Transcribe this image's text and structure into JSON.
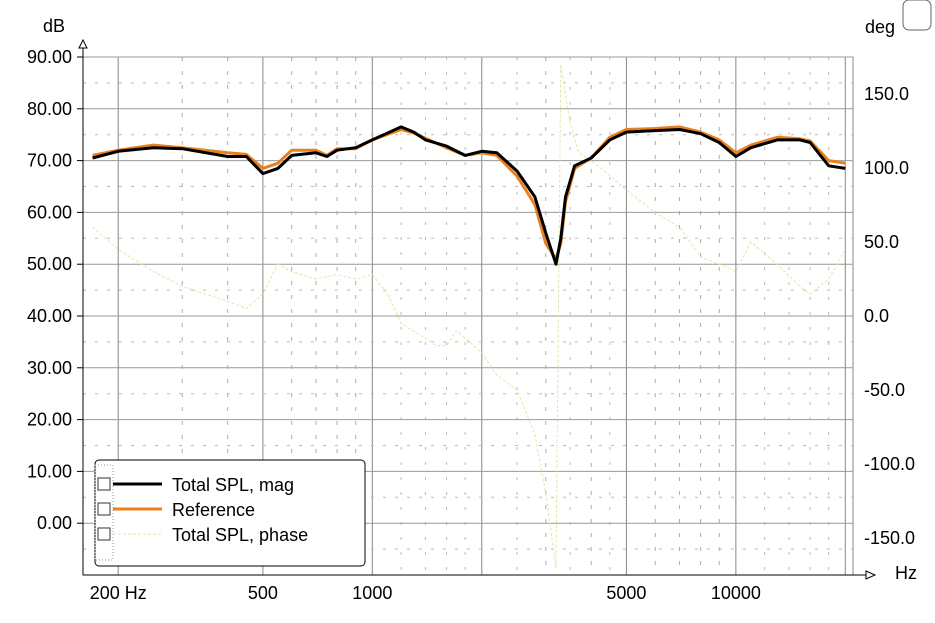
{
  "chart_data": {
    "type": "line",
    "xlabel": "Hz",
    "ylabel": "dB",
    "y2label": "deg",
    "x_scale": "log",
    "xlim": [
      160,
      21000
    ],
    "ylim": [
      -10,
      90
    ],
    "y2lim": [
      -175,
      175
    ],
    "x_tick_values": [
      200,
      500,
      1000,
      5000,
      10000
    ],
    "x_tick_labels": [
      "200 Hz",
      "500",
      "1000",
      "5000",
      "10000"
    ],
    "y_ticks": [
      "90.00",
      "80.00",
      "70.00",
      "60.00",
      "50.00",
      "40.00",
      "30.00",
      "20.00",
      "10.00",
      "0.00"
    ],
    "y2_ticks": [
      "150.0",
      "100.0",
      "50.0",
      "0.0",
      "-50.0",
      "-100.0",
      "-150.0"
    ],
    "grid": true,
    "legend_position": "bottom-left",
    "series": [
      {
        "name": "Total SPL, mag",
        "axis": "left",
        "color": "#000000",
        "x": [
          170,
          200,
          250,
          300,
          400,
          450,
          500,
          550,
          600,
          700,
          750,
          800,
          900,
          1000,
          1200,
          1300,
          1400,
          1600,
          1800,
          2000,
          2200,
          2500,
          2800,
          3000,
          3200,
          3300,
          3400,
          3600,
          4000,
          4500,
          5000,
          6000,
          7000,
          8000,
          9000,
          10000,
          11000,
          13000,
          15000,
          16000,
          18000,
          20000
        ],
        "values": [
          70.5,
          71.8,
          72.5,
          72.3,
          70.8,
          70.8,
          67.5,
          68.5,
          71.0,
          71.5,
          70.8,
          72.0,
          72.5,
          74.0,
          76.5,
          75.5,
          74.0,
          72.8,
          71.0,
          71.8,
          71.5,
          68.0,
          63.0,
          56.0,
          50.0,
          55.0,
          63.0,
          69.0,
          70.5,
          74.0,
          75.5,
          75.8,
          76.0,
          75.2,
          73.5,
          70.8,
          72.5,
          74.0,
          74.0,
          73.5,
          69.0,
          68.5
        ]
      },
      {
        "name": "Reference",
        "axis": "left",
        "color": "#e8801c",
        "x": [
          170,
          200,
          250,
          300,
          400,
          450,
          500,
          550,
          600,
          700,
          750,
          800,
          900,
          1000,
          1200,
          1300,
          1400,
          1600,
          1800,
          2000,
          2200,
          2500,
          2800,
          3000,
          3200,
          3300,
          3400,
          3600,
          4000,
          4500,
          5000,
          6000,
          7000,
          8000,
          9000,
          10000,
          11000,
          13000,
          15000,
          16000,
          18000,
          20000
        ],
        "values": [
          71.0,
          72.0,
          73.0,
          72.5,
          71.5,
          71.2,
          68.5,
          69.5,
          72.0,
          72.0,
          71.0,
          72.3,
          72.3,
          74.0,
          76.0,
          75.3,
          74.3,
          72.5,
          71.0,
          71.5,
          71.0,
          67.0,
          61.5,
          54.0,
          51.0,
          54.0,
          62.0,
          68.5,
          70.5,
          74.5,
          76.0,
          76.2,
          76.5,
          75.5,
          74.0,
          71.5,
          73.0,
          74.5,
          74.2,
          73.8,
          70.0,
          69.5
        ]
      },
      {
        "name": "Total SPL, phase",
        "axis": "right",
        "color": "#e2e6a8",
        "x": [
          170,
          200,
          250,
          300,
          400,
          450,
          500,
          550,
          600,
          700,
          800,
          900,
          1000,
          1100,
          1200,
          1400,
          1500,
          1600,
          1700,
          1800,
          2000,
          2200,
          2500,
          2800,
          3000,
          3200,
          3250,
          3300,
          3500,
          3700,
          4000,
          4500,
          5000,
          6000,
          7000,
          8000,
          9000,
          10000,
          11000,
          13000,
          15000,
          16000,
          18000,
          20000
        ],
        "values": [
          60,
          45,
          30,
          20,
          10,
          5,
          15,
          35,
          30,
          25,
          28,
          25,
          28,
          15,
          -5,
          -15,
          -20,
          -20,
          -10,
          -15,
          -25,
          -40,
          -50,
          -80,
          -120,
          -170,
          0,
          170,
          130,
          110,
          105,
          95,
          85,
          70,
          60,
          40,
          35,
          30,
          50,
          35,
          20,
          15,
          25,
          45
        ]
      }
    ]
  }
}
